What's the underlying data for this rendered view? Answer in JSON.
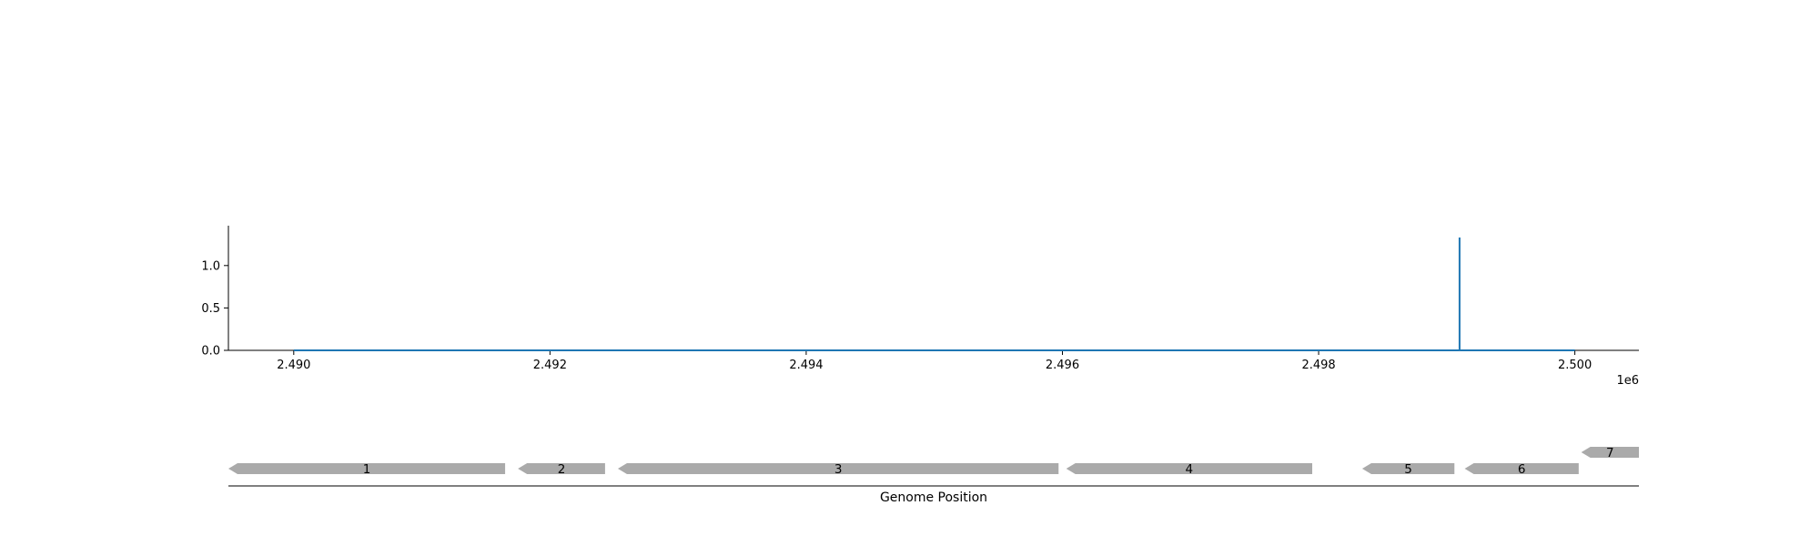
{
  "chart_data": [
    {
      "type": "line",
      "x_unit_exponent": "1e6",
      "xlim": [
        2.48949,
        2.5005
      ],
      "ylim": [
        0.0,
        1.47
      ],
      "x_ticks": [
        "2.490",
        "2.492",
        "2.494",
        "2.496",
        "2.498",
        "2.500"
      ],
      "y_ticks": [
        "0.0",
        "0.5",
        "1.0"
      ],
      "grid": false,
      "series": [
        {
          "color": "#1f77b4",
          "x": [
            2.49,
            2.4991,
            2.4991,
            2.4991,
            2.5
          ],
          "y": [
            0.0,
            0.0,
            1.33,
            0.0,
            0.0
          ]
        }
      ]
    },
    {
      "type": "gene_track",
      "xlim": [
        2.48949,
        2.5005
      ],
      "xlabel": "Genome Position",
      "feature_color": "#aaaaaa",
      "features": [
        {
          "label": "1",
          "start": 2.48949,
          "end": 2.49165,
          "strand": "-",
          "row": 0
        },
        {
          "label": "2",
          "start": 2.49175,
          "end": 2.49243,
          "strand": "-",
          "row": 0
        },
        {
          "label": "3",
          "start": 2.49253,
          "end": 2.49597,
          "strand": "-",
          "row": 0
        },
        {
          "label": "4",
          "start": 2.49603,
          "end": 2.49795,
          "strand": "-",
          "row": 0
        },
        {
          "label": "5",
          "start": 2.49834,
          "end": 2.49906,
          "strand": "-",
          "row": 0
        },
        {
          "label": "6",
          "start": 2.49914,
          "end": 2.50003,
          "strand": "-",
          "row": 0
        },
        {
          "label": "7",
          "start": 2.50005,
          "end": 2.5005,
          "strand": "-",
          "row": 1
        }
      ]
    }
  ]
}
